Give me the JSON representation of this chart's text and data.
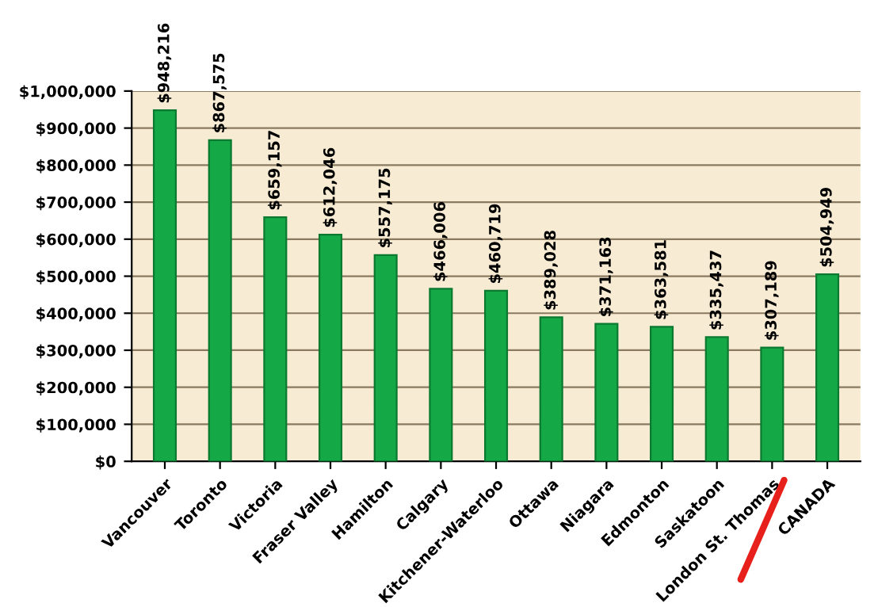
{
  "chart_data": {
    "type": "bar",
    "categories": [
      "Vancouver",
      "Toronto",
      "Victoria",
      "Fraser Valley",
      "Hamilton",
      "Calgary",
      "Kitchener-Waterloo",
      "Ottawa",
      "Niagara",
      "Edmonton",
      "Saskatoon",
      "London St. Thomas",
      "CANADA"
    ],
    "values": [
      948216,
      867575,
      659157,
      612046,
      557175,
      466006,
      460719,
      389028,
      371163,
      363581,
      335437,
      307189,
      504949
    ],
    "value_labels": [
      "$948,216",
      "$867,575",
      "$659,157",
      "$612,046",
      "$557,175",
      "$466,006",
      "$460,719",
      "$389,028",
      "$371,163",
      "$363,581",
      "$335,437",
      "$307,189",
      "$504,949"
    ],
    "color": "#14a847",
    "ylim": [
      0,
      1000000
    ],
    "yticks": [
      {
        "value": 0,
        "label": "$0"
      },
      {
        "value": 100000,
        "label": "$100,000"
      },
      {
        "value": 200000,
        "label": "$200,000"
      },
      {
        "value": 300000,
        "label": "$300,000"
      },
      {
        "value": 400000,
        "label": "$400,000"
      },
      {
        "value": 500000,
        "label": "$500,000"
      },
      {
        "value": 600000,
        "label": "$600,000"
      },
      {
        "value": 700000,
        "label": "$700,000"
      },
      {
        "value": 800000,
        "label": "$800,000"
      },
      {
        "value": 900000,
        "label": "$900,000"
      },
      {
        "value": 1000000,
        "label": "$1,000,000"
      }
    ],
    "grid": "y"
  }
}
